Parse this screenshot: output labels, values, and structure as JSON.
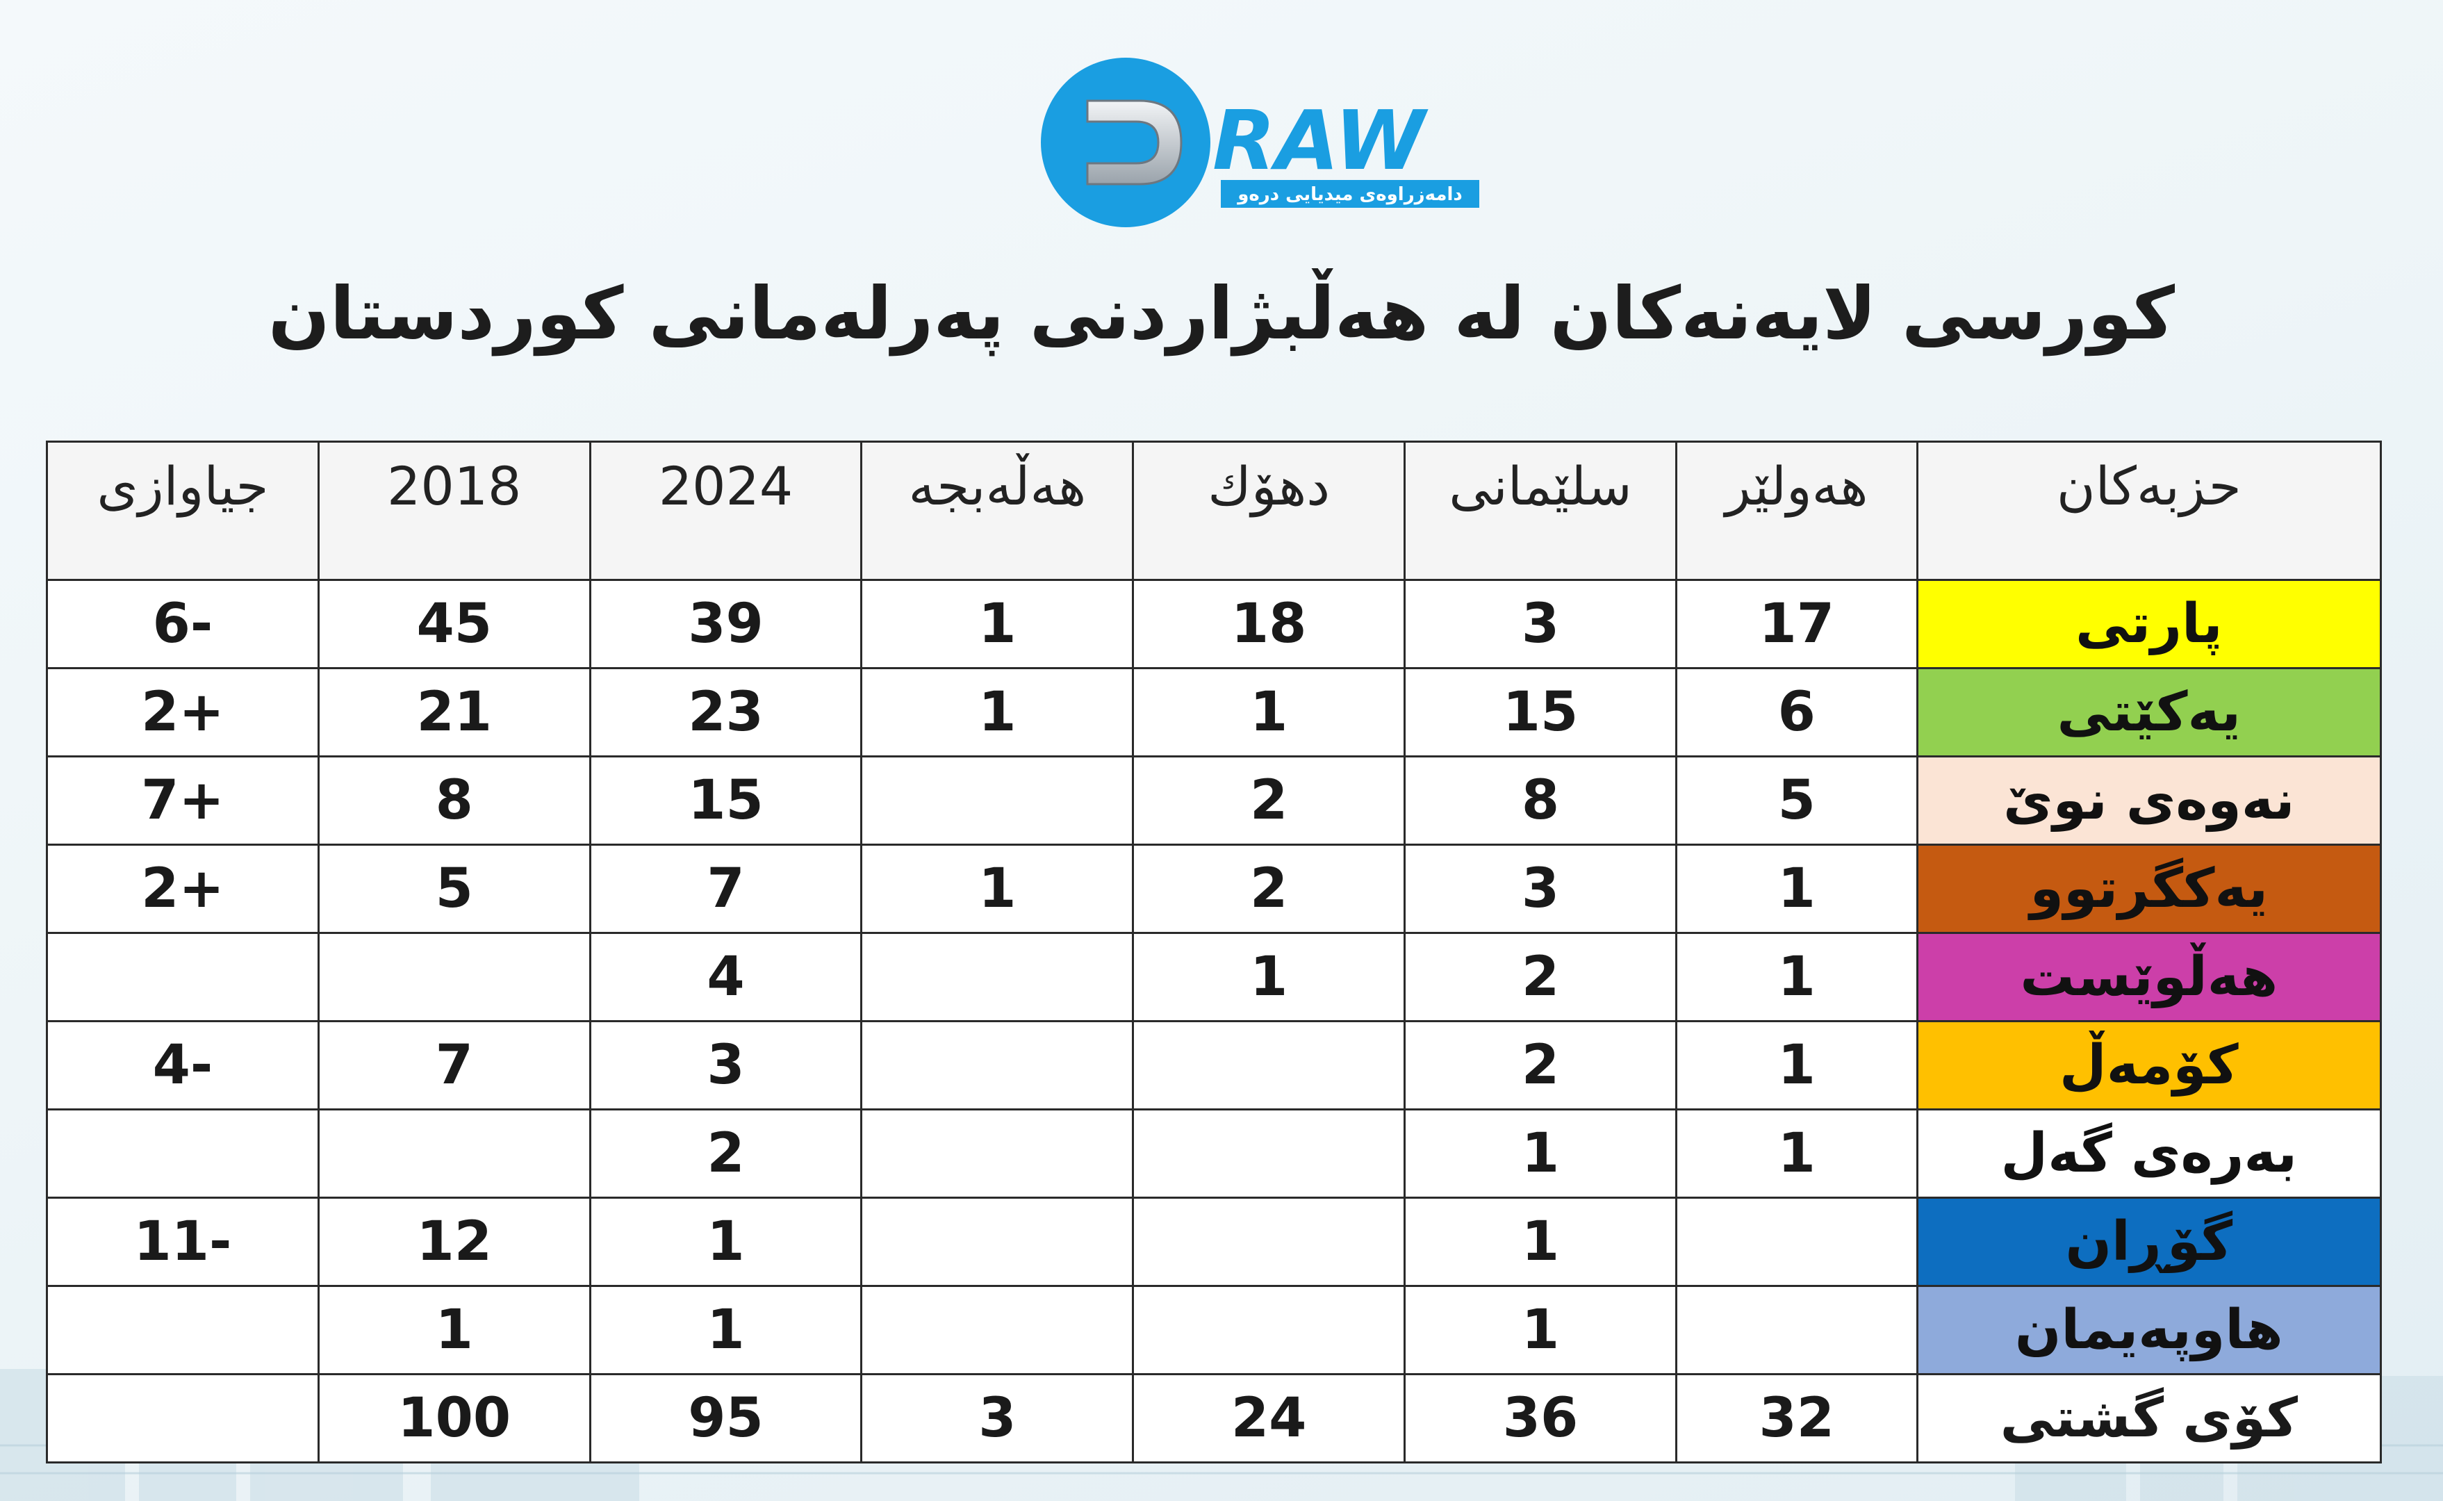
{
  "brand": {
    "name": "DRAW",
    "tagline": "دامەزراوەی میدیایی درەو",
    "primary_color": "#1a9ee1",
    "secondary_color": "#2f3c48"
  },
  "title": "کورسی لایەنەکان لە هەڵبژاردنی پەرلەمانی کوردستان",
  "table": {
    "columns": [
      "جیاوازی",
      "2018",
      "2024",
      "هەڵەبجە",
      "دهۆك",
      "سلێمانی",
      "هەولێر",
      "حزبەکان"
    ],
    "rows": [
      {
        "party": "پارتی",
        "color": "#ffff00",
        "text_color": "#111111",
        "erbil": "17",
        "sulaymaniyah": "3",
        "duhok": "18",
        "halabja": "1",
        "y2024": "39",
        "y2018": "45",
        "diff": "-6",
        "diff_sign": "neg"
      },
      {
        "party": "یەکێتی",
        "color": "#92d050",
        "text_color": "#111111",
        "erbil": "6",
        "sulaymaniyah": "15",
        "duhok": "1",
        "halabja": "1",
        "y2024": "23",
        "y2018": "21",
        "diff": "+2",
        "diff_sign": "pos"
      },
      {
        "party": "نەوەی نوێ",
        "color": "#fbe4d5",
        "text_color": "#111111",
        "erbil": "5",
        "sulaymaniyah": "8",
        "duhok": "2",
        "halabja": "",
        "y2024": "15",
        "y2018": "8",
        "diff": "+7",
        "diff_sign": "pos"
      },
      {
        "party": "یەکگرتوو",
        "color": "#c55a11",
        "text_color": "#111111",
        "erbil": "1",
        "sulaymaniyah": "3",
        "duhok": "2",
        "halabja": "1",
        "y2024": "7",
        "y2018": "5",
        "diff": "+2",
        "diff_sign": "pos"
      },
      {
        "party": "هەڵوێست",
        "color": "#cc3fa9",
        "text_color": "#111111",
        "erbil": "1",
        "sulaymaniyah": "2",
        "duhok": "1",
        "halabja": "",
        "y2024": "4",
        "y2018": "",
        "diff": "",
        "diff_sign": ""
      },
      {
        "party": "کۆمەڵ",
        "color": "#ffc000",
        "text_color": "#111111",
        "erbil": "1",
        "sulaymaniyah": "2",
        "duhok": "",
        "halabja": "",
        "y2024": "3",
        "y2018": "7",
        "diff": "-4",
        "diff_sign": "neg"
      },
      {
        "party": "بەرەی گەل",
        "color": "#ffffff",
        "text_color": "#111111",
        "erbil": "1",
        "sulaymaniyah": "1",
        "duhok": "",
        "halabja": "",
        "y2024": "2",
        "y2018": "",
        "diff": "",
        "diff_sign": ""
      },
      {
        "party": "گۆڕان",
        "color": "#0d6ec0",
        "text_color": "#111111",
        "erbil": "",
        "sulaymaniyah": "1",
        "duhok": "",
        "halabja": "",
        "y2024": "1",
        "y2018": "12",
        "diff": "-11",
        "diff_sign": "neg"
      },
      {
        "party": "هاوپەیمان",
        "color": "#8eaadb",
        "text_color": "#111111",
        "erbil": "",
        "sulaymaniyah": "1",
        "duhok": "",
        "halabja": "",
        "y2024": "1",
        "y2018": "1",
        "diff": "",
        "diff_sign": ""
      }
    ],
    "total": {
      "party": "کۆی گشتی",
      "erbil": "32",
      "sulaymaniyah": "36",
      "duhok": "24",
      "halabja": "3",
      "y2024": "95",
      "y2018": "100",
      "diff": ""
    }
  }
}
